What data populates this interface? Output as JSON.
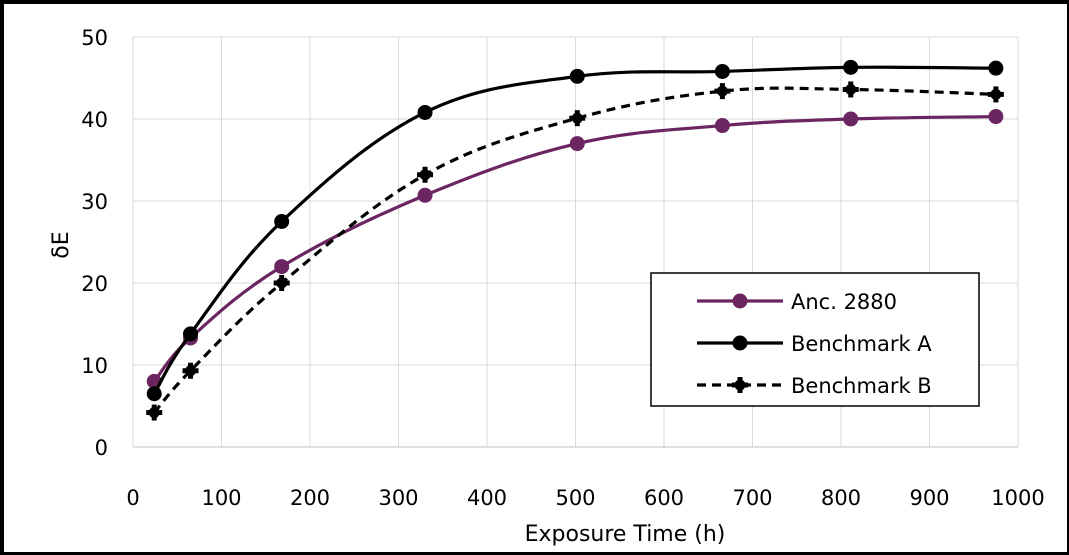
{
  "chart_data": {
    "type": "line",
    "title": "",
    "xlabel": "Exposure Time (h)",
    "ylabel": "δE",
    "xlim": [
      0,
      1000
    ],
    "ylim": [
      0,
      50
    ],
    "x_ticks": [
      "0",
      "100",
      "200",
      "300",
      "400",
      "500",
      "600",
      "700",
      "800",
      "900",
      "1000"
    ],
    "y_ticks": [
      "0",
      "10",
      "20",
      "30",
      "40",
      "50"
    ],
    "grid": "vertical and horizontal",
    "legend_position": "right",
    "series": [
      {
        "name": "Anc. 2880",
        "color": "#6b2560",
        "line_style": "solid",
        "marker": "circle",
        "x": [
          24,
          65,
          168,
          330,
          502,
          666,
          811,
          975
        ],
        "y": [
          8.0,
          13.3,
          22.0,
          30.7,
          37.0,
          39.2,
          40.0,
          40.3
        ]
      },
      {
        "name": "Benchmark A",
        "color": "#000000",
        "line_style": "solid",
        "marker": "circle",
        "x": [
          24,
          65,
          168,
          330,
          502,
          666,
          811,
          975
        ],
        "y": [
          6.5,
          13.8,
          27.5,
          40.8,
          45.2,
          45.8,
          46.3,
          46.2
        ]
      },
      {
        "name": "Benchmark B",
        "color": "#000000",
        "line_style": "dashed",
        "marker": "plus",
        "x": [
          24,
          65,
          168,
          330,
          502,
          666,
          811,
          975
        ],
        "y": [
          4.2,
          9.3,
          20.0,
          33.2,
          40.1,
          43.4,
          43.6,
          43.0
        ]
      }
    ]
  }
}
